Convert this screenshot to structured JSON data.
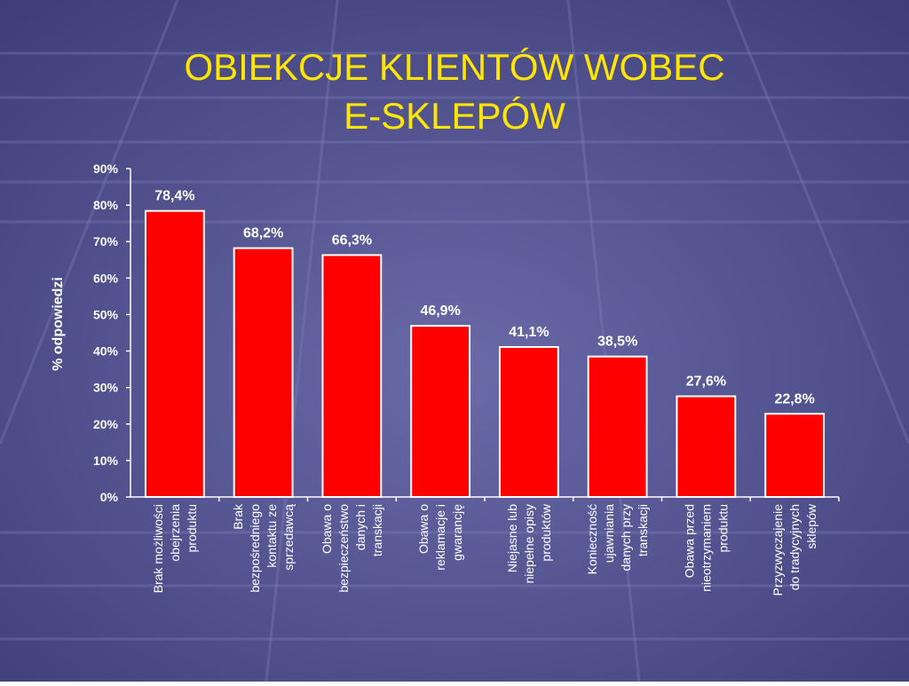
{
  "chart_data": {
    "type": "bar",
    "title": [
      "OBIEKCJE KLIENTÓW WOBEC",
      "E-SKLEPÓW"
    ],
    "y_label": "% odpowiedzi",
    "categories": [
      [
        "Brak możliwości",
        "obejrzenia",
        "produktu"
      ],
      [
        "Brak",
        "bezpośredniego",
        "kontaktu ze",
        "sprzedawcą"
      ],
      [
        "Obawa o",
        "bezpieczeństwo",
        "danych i",
        "transkacji"
      ],
      [
        "Obawa o",
        "reklamacje i",
        "gwarancję"
      ],
      [
        "Niejasne lub",
        "niepełne opisy",
        "produktów"
      ],
      [
        "Konieczność",
        "ujawniania",
        "danych przy",
        "transkacji"
      ],
      [
        "Obawa przed",
        "nieotrzymaniem",
        "produktu"
      ],
      [
        "Przyzwyczajenie",
        "do tradycyjnych",
        "sklepów"
      ]
    ],
    "values": [
      78.4,
      68.2,
      66.3,
      46.9,
      41.1,
      38.5,
      27.6,
      22.8
    ],
    "value_labels": [
      "78,4%",
      "68,2%",
      "66,3%",
      "46,9%",
      "41,1%",
      "38,5%",
      "27,6%",
      "22,8%"
    ],
    "color": "#ff0000",
    "ylim": [
      0,
      90
    ],
    "yticks": [
      {
        "value": 0,
        "label": "0%"
      },
      {
        "value": 10,
        "label": "10%"
      },
      {
        "value": 20,
        "label": "20%"
      },
      {
        "value": 30,
        "label": "30%"
      },
      {
        "value": 40,
        "label": "40%"
      },
      {
        "value": 50,
        "label": "50%"
      },
      {
        "value": 60,
        "label": "60%"
      },
      {
        "value": 70,
        "label": "70%"
      },
      {
        "value": 80,
        "label": "80%"
      },
      {
        "value": 90,
        "label": "90%"
      }
    ]
  }
}
